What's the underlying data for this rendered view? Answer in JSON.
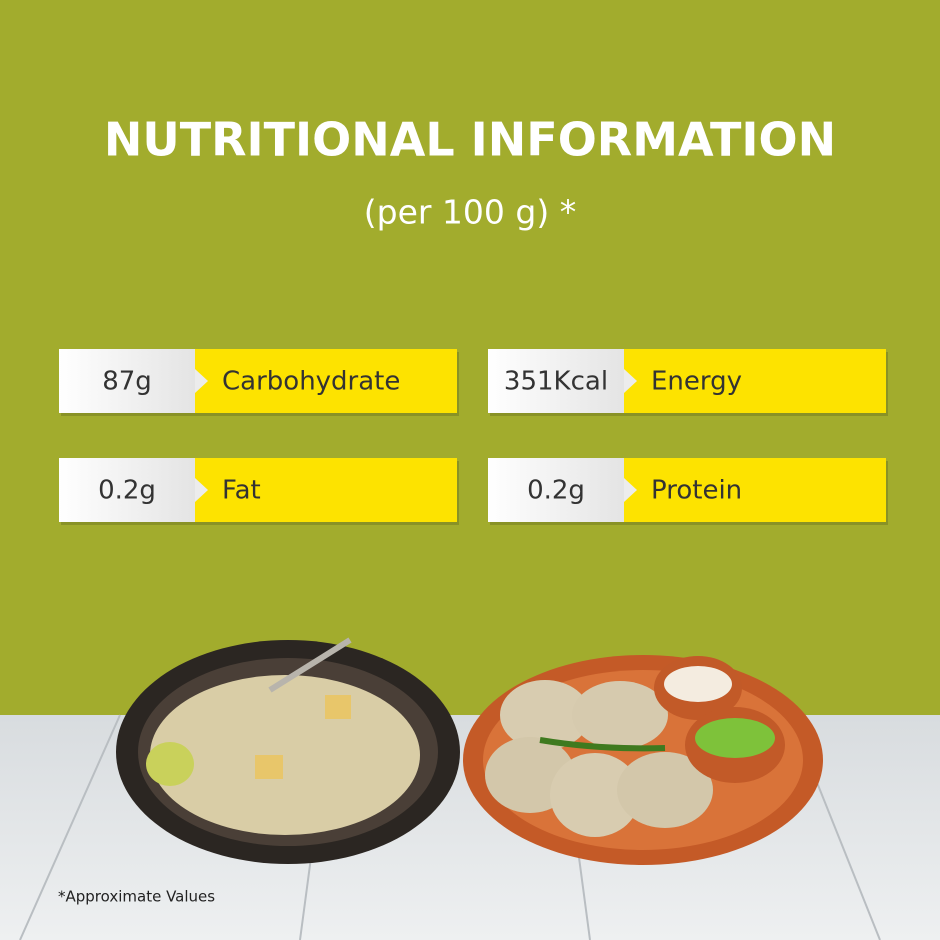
{
  "header": {
    "title": "NUTRITIONAL INFORMATION",
    "subtitle": "(per 100 g) *"
  },
  "items": [
    {
      "amount": "87g",
      "label": "Carbohydrate"
    },
    {
      "amount": "351Kcal",
      "label": "Energy"
    },
    {
      "amount": "0.2g",
      "label": "Fat"
    },
    {
      "amount": "0.2g",
      "label": "Protein"
    }
  ],
  "footnote": "*Approximate Values"
}
